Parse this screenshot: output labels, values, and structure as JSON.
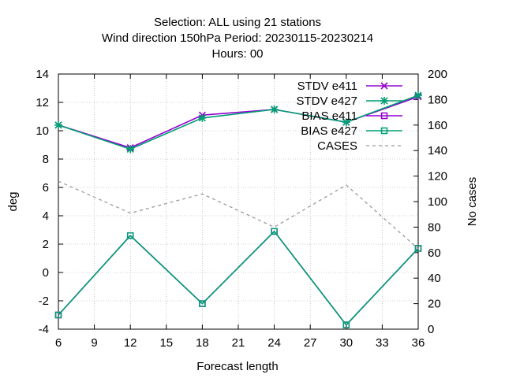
{
  "chart_data": {
    "type": "line",
    "title_lines": [
      "Selection: ALL using    21 stations",
      "Wind direction 150hPa   Period: 20230115-20230214",
      "Hours:  00"
    ],
    "xlabel": "Forecast length",
    "ylabel": "deg",
    "y2label": "No cases",
    "xlim": [
      6,
      36
    ],
    "ylim": [
      -4,
      14
    ],
    "y2lim": [
      0,
      200
    ],
    "x_ticks": [
      "6",
      "9",
      "12",
      "15",
      "18",
      "21",
      "24",
      "27",
      "30",
      "33",
      "36"
    ],
    "y_ticks": [
      "-4",
      "-2",
      "0",
      "2",
      "4",
      "6",
      "8",
      "10",
      "12",
      "14"
    ],
    "y2_ticks": [
      "0",
      "20",
      "40",
      "60",
      "80",
      "100",
      "120",
      "140",
      "160",
      "180",
      "200"
    ],
    "grid": true,
    "legend_position": "top-right",
    "x": [
      6,
      12,
      18,
      24,
      30,
      36
    ],
    "series": [
      {
        "name": "STDV e411",
        "axis": "y",
        "color": "#9400d3",
        "marker": "x",
        "values": [
          10.4,
          8.8,
          11.1,
          11.5,
          10.6,
          12.4
        ]
      },
      {
        "name": "STDV e427",
        "axis": "y",
        "color": "#009e73",
        "marker": "star",
        "values": [
          10.4,
          8.7,
          10.9,
          11.5,
          10.6,
          12.5
        ]
      },
      {
        "name": "BIAS e411",
        "axis": "y",
        "color": "#9400d3",
        "marker": "square",
        "values": [
          -3.0,
          2.6,
          -2.2,
          2.9,
          -3.7,
          1.7
        ]
      },
      {
        "name": "BIAS e427",
        "axis": "y",
        "color": "#009e73",
        "marker": "square",
        "values": [
          -3.0,
          2.6,
          -2.2,
          2.9,
          -3.7,
          1.7
        ]
      },
      {
        "name": "CASES",
        "axis": "y2",
        "color": "#999999",
        "marker": "none",
        "dashed": true,
        "values": [
          116,
          91,
          106,
          80,
          113,
          63
        ]
      }
    ]
  }
}
